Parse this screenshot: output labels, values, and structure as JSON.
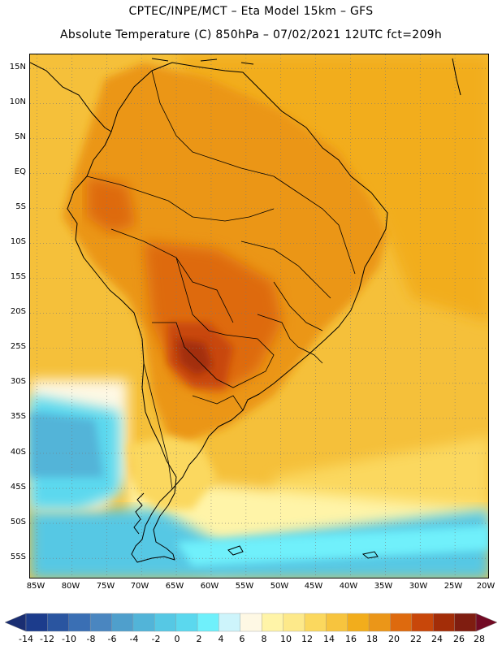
{
  "header": {
    "line1": "CPTEC/INPE/MCT –  Eta Model 15km – GFS",
    "line2": "Absolute Temperature (C) 850hPa – 07/02/2021 12UTC fct=209h"
  },
  "map": {
    "region": "South America",
    "variable": "Absolute Temperature (C) 850hPa",
    "lat_labels": [
      "15N",
      "10N",
      "5N",
      "EQ",
      "5S",
      "10S",
      "15S",
      "20S",
      "25S",
      "30S",
      "35S",
      "40S",
      "45S",
      "50S",
      "55S"
    ],
    "lon_labels": [
      "85W",
      "80W",
      "75W",
      "70W",
      "65W",
      "60W",
      "55W",
      "50W",
      "45W",
      "40W",
      "35W",
      "30W",
      "25W",
      "20W"
    ],
    "lat_range": [
      17,
      -58
    ],
    "lon_range": [
      -86,
      -20
    ]
  },
  "colorbar": {
    "labels": [
      "-14",
      "-12",
      "-10",
      "-8",
      "-6",
      "-4",
      "-2",
      "0",
      "2",
      "4",
      "6",
      "8",
      "10",
      "12",
      "14",
      "16",
      "18",
      "20",
      "22",
      "24",
      "26",
      "28"
    ],
    "colors": [
      "#1c3c8c",
      "#2a55a0",
      "#3a6fb4",
      "#4a86c0",
      "#4f9fcc",
      "#52b4d8",
      "#56c8e4",
      "#5bd8ee",
      "#6ff0fb",
      "#cdf4fb",
      "#fef8e4",
      "#fff4a8",
      "#fde98a",
      "#fbd85e",
      "#f7c43e",
      "#f2ad1c",
      "#eb9618",
      "#de6a0e",
      "#c8470a",
      "#a32d08",
      "#7f1d10"
    ],
    "under_color": "#1a2e72",
    "over_color": "#720a24"
  }
}
